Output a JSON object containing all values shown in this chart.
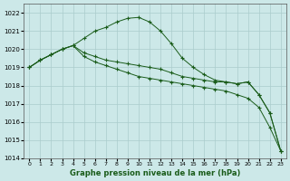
{
  "x": [
    0,
    1,
    2,
    3,
    4,
    5,
    6,
    7,
    8,
    9,
    10,
    11,
    12,
    13,
    14,
    15,
    16,
    17,
    18,
    19,
    20,
    21,
    22,
    23
  ],
  "line_top": [
    1019.0,
    1019.4,
    1019.7,
    1020.0,
    1020.2,
    1020.6,
    1021.0,
    1021.2,
    1021.5,
    1021.7,
    1021.75,
    1021.5,
    1021.0,
    1020.3,
    1019.5,
    1019.0,
    1018.6,
    1018.3,
    1018.2,
    1018.1,
    1018.2,
    1017.5,
    1016.5,
    1014.4
  ],
  "line_mid": [
    1019.0,
    1019.4,
    1019.7,
    1020.0,
    1020.2,
    1019.8,
    1019.6,
    1019.4,
    1019.3,
    1019.2,
    1019.1,
    1019.0,
    1018.9,
    1018.7,
    1018.5,
    1018.4,
    1018.3,
    1018.2,
    1018.2,
    1018.1,
    1018.2,
    1017.5,
    1016.5,
    1014.4
  ],
  "line_bot": [
    1019.0,
    1019.4,
    1019.7,
    1020.0,
    1020.2,
    1019.6,
    1019.3,
    1019.1,
    1018.9,
    1018.7,
    1018.5,
    1018.4,
    1018.3,
    1018.2,
    1018.1,
    1018.0,
    1017.9,
    1017.8,
    1017.7,
    1017.5,
    1017.3,
    1016.8,
    1015.7,
    1014.4
  ],
  "ylim": [
    1014,
    1022.5
  ],
  "yticks": [
    1014,
    1015,
    1016,
    1017,
    1018,
    1019,
    1020,
    1021,
    1022
  ],
  "bg_color": "#cce8e8",
  "grid_color": "#aacccc",
  "line_color": "#1a5c1a",
  "xlabel": "Graphe pression niveau de la mer (hPa)",
  "marker": "+"
}
